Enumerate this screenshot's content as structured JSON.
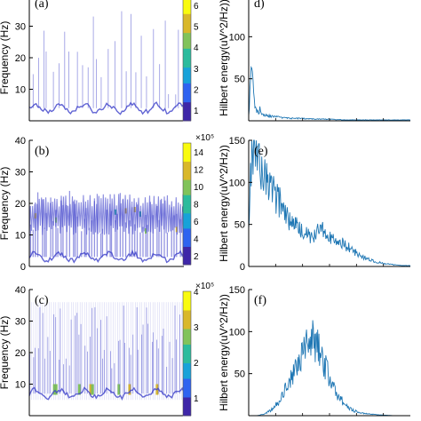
{
  "figure_colors": {
    "spectrogram_line": "#3b3ec9",
    "hilbert_line": "#1f77b4",
    "axes": "#000000"
  },
  "colormap": [
    "#3e26a8",
    "#2e63f0",
    "#17a2d9",
    "#2bbb9d",
    "#81c35a",
    "#d9b82a",
    "#f9fb0e"
  ],
  "chart_data": [
    {
      "type": "heatmap",
      "panel_label": "(a)",
      "xlabel": "",
      "ylabel": "Frequency (Hz)",
      "ylim": [
        0,
        40
      ],
      "yticks": [
        10,
        20,
        30
      ],
      "colorbar_ticks": [
        "1",
        "2",
        "3",
        "4",
        "5",
        "6"
      ],
      "colorbar_range": [
        0.5,
        6.5
      ],
      "colorbar_exponent": "",
      "description_series": {
        "base_frequency_hz": 4,
        "max_peak_hz": 37
      }
    },
    {
      "type": "line",
      "panel_label": "d)",
      "xlabel": "",
      "ylabel": "Hilbert energy(uV^2/Hz))",
      "ylim": [
        0,
        150
      ],
      "yticks": [
        50,
        100
      ],
      "x": [
        0,
        1,
        2,
        3,
        4,
        5,
        6,
        7,
        8,
        10,
        12,
        15,
        20,
        25,
        30,
        40,
        50,
        60,
        70,
        80,
        90,
        100
      ],
      "series": [
        {
          "values": [
            5,
            40,
            68,
            30,
            15,
            12,
            9,
            14,
            8,
            7,
            6,
            5,
            4,
            3,
            3,
            2,
            2,
            1,
            1,
            1,
            1,
            1
          ]
        }
      ]
    },
    {
      "type": "heatmap",
      "panel_label": "(b)",
      "xlabel": "",
      "ylabel": "Frequency (Hz)",
      "ylim": [
        0,
        40
      ],
      "yticks": [
        0,
        10,
        20,
        30,
        40
      ],
      "colorbar_ticks": [
        "2",
        "4",
        "6",
        "8",
        "10",
        "12",
        "14"
      ],
      "colorbar_range": [
        1,
        15
      ],
      "colorbar_exponent": "×10⁵",
      "description_series": {
        "base_frequency_hz": 3,
        "band_hz": [
          10,
          22
        ]
      }
    },
    {
      "type": "line",
      "panel_label": "(e)",
      "xlabel": "",
      "ylabel": "Hilbert energy(uV^2/Hz))",
      "ylim": [
        0,
        150
      ],
      "yticks": [
        0,
        50,
        100,
        150
      ],
      "x": [
        0,
        2,
        4,
        6,
        8,
        10,
        12,
        15,
        18,
        20,
        25,
        30,
        35,
        40,
        45,
        50,
        55,
        60,
        65,
        70,
        75,
        80,
        85,
        90,
        95,
        100
      ],
      "series": [
        {
          "values": [
            40,
            150,
            140,
            115,
            120,
            100,
            95,
            85,
            80,
            70,
            55,
            48,
            40,
            35,
            45,
            38,
            30,
            25,
            18,
            12,
            8,
            5,
            3,
            2,
            1,
            1
          ]
        }
      ]
    },
    {
      "type": "heatmap",
      "panel_label": "(c)",
      "xlabel": "",
      "ylabel": "Frequency (Hz)",
      "ylim": [
        0,
        40
      ],
      "yticks": [
        10,
        20,
        30,
        40
      ],
      "colorbar_ticks": [
        "1",
        "2",
        "3",
        "4"
      ],
      "colorbar_range": [
        0.5,
        4
      ],
      "colorbar_exponent": "×10⁵",
      "description_series": {
        "base_frequency_hz": 7
      }
    },
    {
      "type": "line",
      "panel_label": "(f)",
      "xlabel": "",
      "ylabel": "Hilbert energy(uV^2/Hz))",
      "ylim": [
        0,
        150
      ],
      "yticks": [
        50,
        100,
        150
      ],
      "x": [
        0,
        5,
        10,
        15,
        20,
        25,
        30,
        35,
        38,
        40,
        42,
        45,
        50,
        55,
        60,
        65,
        70,
        75,
        80,
        90,
        100
      ],
      "series": [
        {
          "values": [
            0,
            0,
            2,
            8,
            20,
            40,
            60,
            78,
            88,
            90,
            85,
            72,
            45,
            25,
            12,
            6,
            3,
            2,
            1,
            0,
            0
          ]
        }
      ]
    }
  ]
}
